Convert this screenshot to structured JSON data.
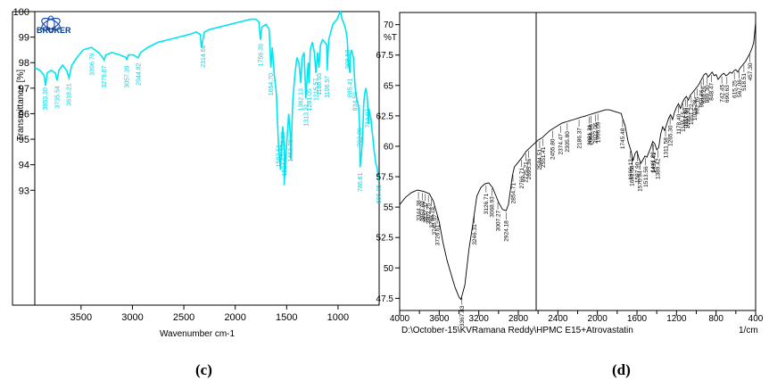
{
  "chart_data": [
    {
      "type": "line",
      "panel_label": "(c)",
      "logo_text": "BRUKER",
      "xlabel": "Wavenumber cm-1",
      "ylabel": "Transmittance [%]",
      "xlim": [
        3950,
        600
      ],
      "ylim": [
        88.5,
        100
      ],
      "x_ticks": [
        3500,
        3000,
        2500,
        2000,
        1500,
        1000
      ],
      "y_ticks": [
        93,
        94,
        95,
        96,
        97,
        98,
        99,
        100
      ],
      "series": [
        {
          "color": "#00e5f0",
          "x": [
            3950,
            3900,
            3860,
            3845,
            3830,
            3790,
            3750,
            3734,
            3715,
            3680,
            3640,
            3618,
            3590,
            3540,
            3480,
            3400,
            3330,
            3290,
            3276,
            3260,
            3200,
            3120,
            3060,
            3057,
            3040,
            2990,
            2950,
            2944,
            2920,
            2850,
            2750,
            2650,
            2550,
            2450,
            2380,
            2340,
            2330,
            2314,
            2300,
            2250,
            2150,
            2050,
            1950,
            1850,
            1800,
            1770,
            1755,
            1740,
            1700,
            1670,
            1654,
            1640,
            1620,
            1600,
            1580,
            1560,
            1538,
            1520,
            1524,
            1500,
            1480,
            1464,
            1460,
            1440,
            1420,
            1400,
            1380,
            1362,
            1350,
            1330,
            1313,
            1300,
            1290,
            1281,
            1270,
            1250,
            1230,
            1215,
            1200,
            1186,
            1170,
            1150,
            1130,
            1110,
            1106,
            1090,
            1070,
            1050,
            1030,
            1010,
            990,
            975,
            960,
            940,
            920,
            910,
            900,
            885,
            880,
            870,
            850,
            835,
            820,
            800,
            790,
            786,
            770,
            760,
            750,
            740,
            730,
            720,
            712,
            705,
            700,
            690,
            680,
            670,
            660,
            650,
            640,
            630,
            620,
            610,
            605,
            600
          ],
          "y": [
            97.8,
            97.7,
            97.5,
            97.1,
            97.6,
            97.7,
            97.6,
            97.3,
            97.7,
            97.9,
            97.7,
            97.4,
            97.9,
            98.2,
            98.5,
            98.6,
            98.4,
            98.2,
            98.1,
            98.3,
            98.4,
            98.3,
            98.2,
            98.1,
            98.3,
            98.3,
            98.2,
            98.2,
            98.4,
            98.6,
            98.8,
            98.9,
            99.0,
            99.1,
            99.2,
            99.1,
            98.6,
            98.9,
            99.2,
            99.3,
            99.4,
            99.5,
            99.6,
            99.7,
            99.7,
            99.6,
            98.9,
            99.4,
            99.5,
            99.3,
            97.8,
            98.6,
            97.5,
            96.8,
            94.8,
            93.8,
            95.5,
            94.4,
            93.2,
            94.8,
            96.0,
            95.2,
            94.2,
            96.5,
            97.5,
            98.2,
            98.0,
            97.2,
            98.2,
            98.4,
            96.6,
            97.4,
            98.0,
            97.2,
            98.5,
            98.8,
            98.4,
            97.6,
            98.4,
            97.8,
            98.7,
            98.9,
            98.8,
            98.7,
            97.7,
            98.9,
            99.2,
            99.5,
            99.6,
            99.7,
            99.9,
            100.0,
            99.7,
            99.5,
            99.2,
            98.9,
            98.0,
            97.6,
            98.3,
            98.5,
            98.2,
            97.1,
            96.6,
            96.3,
            95.5,
            93.9,
            94.5,
            95.2,
            96.4,
            96.8,
            97.0,
            96.8,
            96.4,
            95.6,
            96.2,
            96.0,
            95.8,
            95.4,
            95.0,
            94.6,
            94.3,
            94.0,
            93.9,
            93.6,
            93.4,
            93.4
          ]
        }
      ],
      "peak_labels": [
        {
          "text": "3853.30",
          "x": 3850
        },
        {
          "text": "3735.54",
          "x": 3734
        },
        {
          "text": "3618.21",
          "x": 3618
        },
        {
          "text": "3396.79",
          "x": 3396
        },
        {
          "text": "3279.67",
          "x": 3276
        },
        {
          "text": "3057.39",
          "x": 3057
        },
        {
          "text": "2944.82",
          "x": 2944
        },
        {
          "text": "2314.66",
          "x": 2314
        },
        {
          "text": "1756.39",
          "x": 1756
        },
        {
          "text": "1654.70",
          "x": 1654
        },
        {
          "text": "1538.30",
          "x": 1538
        },
        {
          "text": "1582.51",
          "x": 1582
        },
        {
          "text": "1524.67",
          "x": 1524
        },
        {
          "text": "1463.76",
          "x": 1464
        },
        {
          "text": "1362.13",
          "x": 1362
        },
        {
          "text": "1313.31",
          "x": 1313
        },
        {
          "text": "1281.05",
          "x": 1281
        },
        {
          "text": "1215.57",
          "x": 1215
        },
        {
          "text": "1186.65",
          "x": 1186
        },
        {
          "text": "1106.57",
          "x": 1106
        },
        {
          "text": "908.60",
          "x": 908
        },
        {
          "text": "885.41",
          "x": 885
        },
        {
          "text": "834.59",
          "x": 834
        },
        {
          "text": "792.09",
          "x": 792
        },
        {
          "text": "786.61",
          "x": 786
        },
        {
          "text": "712.07",
          "x": 712
        },
        {
          "text": "606.05",
          "x": 606
        }
      ]
    },
    {
      "type": "line",
      "panel_label": "(d)",
      "ylabel": "%T",
      "xlabel": "1/cm",
      "footer_text": "D:\\October-15\\KVRamana Reddy\\HPMC E15+Atrovastatin",
      "xlim": [
        4000,
        400
      ],
      "ylim": [
        46.5,
        71
      ],
      "x_ticks": [
        4000,
        3600,
        3200,
        2800,
        2400,
        2000,
        1600,
        1200,
        800,
        400
      ],
      "x_ticks_minor": [
        3800,
        3400,
        3000,
        2600,
        2200,
        1800,
        1400,
        1000,
        600
      ],
      "y_ticks": [
        47.5,
        50,
        52.5,
        55,
        57.5,
        60,
        62.5,
        65,
        67.5,
        70
      ],
      "series": [
        {
          "color": "#000000",
          "x": [
            4000,
            3940,
            3880,
            3820,
            3760,
            3700,
            3660,
            3600,
            3560,
            3520,
            3480,
            3440,
            3400,
            3380,
            3340,
            3300,
            3260,
            3246,
            3220,
            3180,
            3140,
            3100,
            3060,
            3030,
            3000,
            2960,
            2924,
            2900,
            2860,
            2840,
            2800,
            2760,
            2720,
            2680,
            2640,
            2600,
            2560,
            2520,
            2480,
            2440,
            2400,
            2360,
            2320,
            2280,
            2240,
            2200,
            2160,
            2120,
            2080,
            2040,
            2000,
            1960,
            1920,
            1880,
            1840,
            1800,
            1760,
            1745,
            1720,
            1690,
            1660,
            1640,
            1620,
            1600,
            1580,
            1560,
            1540,
            1520,
            1500,
            1480,
            1460,
            1440,
            1420,
            1400,
            1380,
            1360,
            1340,
            1320,
            1300,
            1280,
            1260,
            1240,
            1220,
            1200,
            1180,
            1160,
            1140,
            1120,
            1100,
            1080,
            1060,
            1040,
            1020,
            1000,
            980,
            960,
            940,
            920,
            900,
            880,
            860,
            840,
            820,
            800,
            780,
            760,
            740,
            720,
            700,
            680,
            660,
            640,
            620,
            600,
            580,
            560,
            540,
            520,
            500,
            480,
            460,
            440,
            420,
            410,
            400
          ],
          "y": [
            55.2,
            55.8,
            56.2,
            56.4,
            56.3,
            56.1,
            55.5,
            53.8,
            52.0,
            50.6,
            49.5,
            48.4,
            47.6,
            47.4,
            48.6,
            51.5,
            53.6,
            54.4,
            55.9,
            56.6,
            56.9,
            57.0,
            56.6,
            56.0,
            55.4,
            54.8,
            54.7,
            55.2,
            57.6,
            58.3,
            58.7,
            59.1,
            59.6,
            59.9,
            60.2,
            60.5,
            60.7,
            61.0,
            61.3,
            61.5,
            61.7,
            61.9,
            62.0,
            62.1,
            62.2,
            62.3,
            62.4,
            62.5,
            62.6,
            62.7,
            62.8,
            62.9,
            63.0,
            63.0,
            62.9,
            62.8,
            62.7,
            62.3,
            61.7,
            60.4,
            59.6,
            58.8,
            59.4,
            59.6,
            59.0,
            58.6,
            58.9,
            59.2,
            59.1,
            59.5,
            59.9,
            60.4,
            60.2,
            59.7,
            59.9,
            61.0,
            61.6,
            61.3,
            61.8,
            62.3,
            62.6,
            62.2,
            62.8,
            63.2,
            63.5,
            63.1,
            63.6,
            63.9,
            64.1,
            63.8,
            64.2,
            64.4,
            64.6,
            64.8,
            65.0,
            65.3,
            65.6,
            65.9,
            66.0,
            65.7,
            65.9,
            66.1,
            65.8,
            65.9,
            65.5,
            65.7,
            65.9,
            66.0,
            65.8,
            65.9,
            66.1,
            66.0,
            66.2,
            66.3,
            66.1,
            66.4,
            66.6,
            66.8,
            67.0,
            67.3,
            67.6,
            68.0,
            68.5,
            69.3,
            70.2
          ]
        }
      ],
      "peak_labels": [
        {
          "text": "3344.38",
          "x": 3810
        },
        {
          "text": "3853.69",
          "x": 3770
        },
        {
          "text": "3837.37",
          "x": 3740
        },
        {
          "text": "3802.25",
          "x": 3710
        },
        {
          "text": "3766.76",
          "x": 3680
        },
        {
          "text": "3745.07",
          "x": 3650
        },
        {
          "text": "3726.61",
          "x": 3620
        },
        {
          "text": "3367.83",
          "x": 3370
        },
        {
          "text": "3246.31",
          "x": 3246
        },
        {
          "text": "3126.71",
          "x": 3126
        },
        {
          "text": "3068.93",
          "x": 3068
        },
        {
          "text": "3007.27",
          "x": 3007
        },
        {
          "text": "2924.18",
          "x": 2924
        },
        {
          "text": "2854.71",
          "x": 2854
        },
        {
          "text": "2766.71",
          "x": 2766
        },
        {
          "text": "2725.21",
          "x": 2725
        },
        {
          "text": "2695.36",
          "x": 2695
        },
        {
          "text": "2584.51",
          "x": 2584
        },
        {
          "text": "2551.41",
          "x": 2551
        },
        {
          "text": "2455.80",
          "x": 2455
        },
        {
          "text": "2374.47",
          "x": 2374
        },
        {
          "text": "2305.80",
          "x": 2305
        },
        {
          "text": "2186.37",
          "x": 2186
        },
        {
          "text": "2081.31",
          "x": 2081
        },
        {
          "text": "2066.95",
          "x": 2066
        },
        {
          "text": "2022.06",
          "x": 2022
        },
        {
          "text": "1996.09",
          "x": 1996
        },
        {
          "text": "1745.48",
          "x": 1745
        },
        {
          "text": "1666.13",
          "x": 1666
        },
        {
          "text": "1651.58",
          "x": 1651
        },
        {
          "text": "1597.90",
          "x": 1597
        },
        {
          "text": "1570.94",
          "x": 1570
        },
        {
          "text": "1513.56",
          "x": 1513
        },
        {
          "text": "1441.89",
          "x": 1441
        },
        {
          "text": "1431.41",
          "x": 1431
        },
        {
          "text": "1389.42",
          "x": 1389
        },
        {
          "text": "1311.58",
          "x": 1311
        },
        {
          "text": "1265.30",
          "x": 1265
        },
        {
          "text": "1178.40",
          "x": 1178
        },
        {
          "text": "1135.15",
          "x": 1135
        },
        {
          "text": "1111.89",
          "x": 1111
        },
        {
          "text": "1090.30",
          "x": 1090
        },
        {
          "text": "1051.22",
          "x": 1051
        },
        {
          "text": "1015.38",
          "x": 1015
        },
        {
          "text": "992.16",
          "x": 992
        },
        {
          "text": "950.86",
          "x": 950
        },
        {
          "text": "930.26",
          "x": 930
        },
        {
          "text": "889.30",
          "x": 889
        },
        {
          "text": "848.47",
          "x": 848
        },
        {
          "text": "742.45",
          "x": 742
        },
        {
          "text": "690.63",
          "x": 690
        },
        {
          "text": "615.25",
          "x": 615
        },
        {
          "text": "567.06",
          "x": 567
        },
        {
          "text": "518.51",
          "x": 518
        },
        {
          "text": "457.30",
          "x": 457
        }
      ]
    }
  ]
}
